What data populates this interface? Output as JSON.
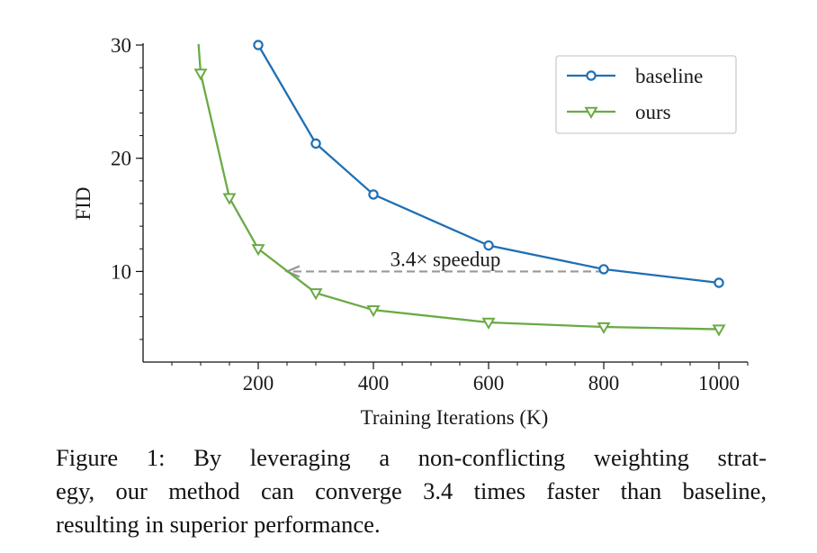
{
  "chart_data": {
    "type": "line",
    "xlabel": "Training Iterations (K)",
    "ylabel": "FID",
    "xlim": [
      0,
      1050
    ],
    "ylim": [
      2,
      30
    ],
    "x_ticks": [
      200,
      400,
      600,
      800,
      1000
    ],
    "y_ticks": [
      10,
      20,
      30
    ],
    "x_minor_step": 50,
    "y_minor_step": 2,
    "grid": false,
    "legend_position": "top-right",
    "series": [
      {
        "name": "baseline",
        "color": "#1f6fb4",
        "marker": "circle",
        "points": [
          {
            "x": 200,
            "y": 30.0
          },
          {
            "x": 300,
            "y": 21.3
          },
          {
            "x": 400,
            "y": 16.8
          },
          {
            "x": 600,
            "y": 12.3
          },
          {
            "x": 800,
            "y": 10.2
          },
          {
            "x": 1000,
            "y": 9.0
          }
        ],
        "entry_line": []
      },
      {
        "name": "ours",
        "color": "#6aaa45",
        "marker": "triangle-down",
        "points": [
          {
            "x": 100,
            "y": 27.5
          },
          {
            "x": 150,
            "y": 16.5
          },
          {
            "x": 200,
            "y": 12.0
          },
          {
            "x": 300,
            "y": 8.1
          },
          {
            "x": 400,
            "y": 6.6
          },
          {
            "x": 600,
            "y": 5.5
          },
          {
            "x": 800,
            "y": 5.1
          },
          {
            "x": 1000,
            "y": 4.9
          }
        ],
        "entry_line": [
          {
            "x": 95,
            "y": 31.0
          }
        ]
      }
    ],
    "annotation": {
      "text": "3.4× speedup",
      "arrow_from": {
        "x": 800,
        "y": 10.0
      },
      "arrow_to": {
        "x": 250,
        "y": 10.0
      },
      "style": "dashed",
      "color": "#999999"
    }
  },
  "caption": {
    "lines": [
      "Figure 1: By leveraging a non-conflicting weighting strat-",
      "egy, our method can converge 3.4 times faster than baseline,",
      "resulting in superior performance."
    ]
  }
}
